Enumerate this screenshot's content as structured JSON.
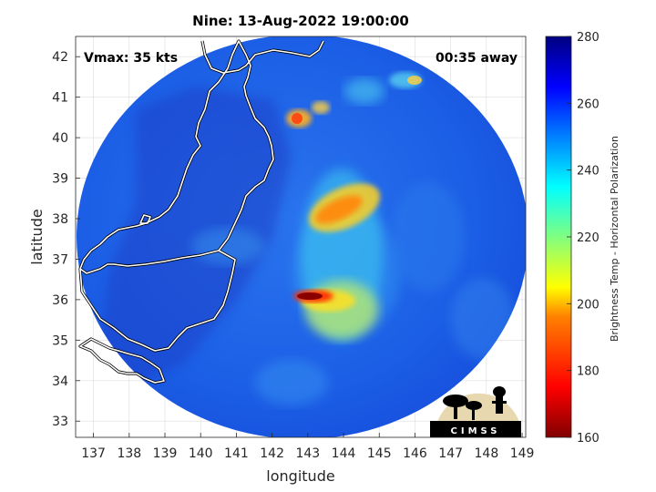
{
  "title": "Nine: 13-Aug-2022 19:00:00",
  "vmax_label": "Vmax: 35 kts",
  "away_label": "00:35 away",
  "xlabel": "longitude",
  "ylabel": "latitude",
  "colorbar_label": "Brightness Temp - Horizontal Polarization",
  "logo_text": "CIMSS",
  "colors": {
    "background_swath": "#1a5ee8",
    "ocean_outside": "#ffffff",
    "coastline": "#ffffff",
    "grid": "#dcdcdc"
  },
  "map": {
    "lon_range": [
      136.5,
      149.1
    ],
    "lat_range": [
      32.6,
      42.5
    ],
    "lon_ticks": [
      "137",
      "138",
      "139",
      "140",
      "141",
      "142",
      "143",
      "144",
      "145",
      "146",
      "147",
      "148",
      "149"
    ],
    "lat_ticks": [
      "33",
      "34",
      "35",
      "36",
      "37",
      "38",
      "39",
      "40",
      "41",
      "42"
    ],
    "swath_center": [
      142.4,
      37.5
    ],
    "features": [
      {
        "name": "cold-band-north",
        "lon": 143.8,
        "lat": 38.3,
        "value": 195
      },
      {
        "name": "cold-core-south",
        "lon": 143.0,
        "lat": 36.1,
        "value": 168
      },
      {
        "name": "convection-north-edge",
        "lon": 143.1,
        "lat": 40.5,
        "value": 205
      },
      {
        "name": "warm-arc-east",
        "lon": 143.9,
        "lat": 35.6,
        "value": 215
      }
    ]
  },
  "colorbar": {
    "min": 160,
    "max": 280,
    "ticks": [
      "160",
      "180",
      "200",
      "220",
      "240",
      "260",
      "280"
    ],
    "colormap": "jet"
  }
}
